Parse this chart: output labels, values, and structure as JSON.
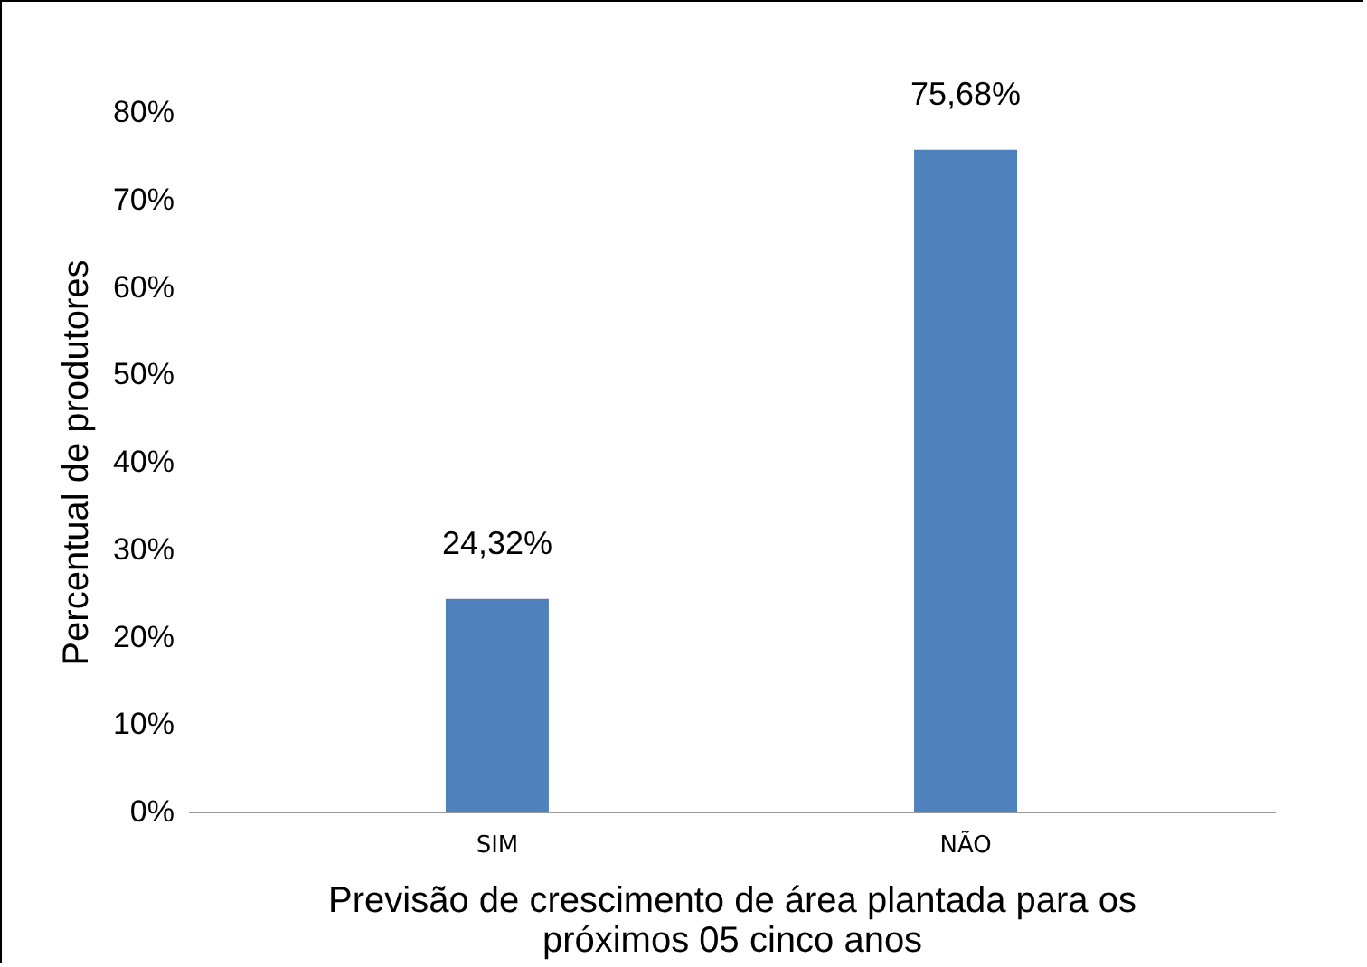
{
  "chart_data": {
    "type": "bar",
    "xlabel": "Previsão de crescimento de área plantada para os próximos 05 cinco anos",
    "ylabel": "Percentual de produtores",
    "categories": [
      "SIM",
      "NÃO"
    ],
    "values": [
      24.32,
      75.68
    ],
    "color": "#4f81bd",
    "value_labels": [
      "24,32%",
      "75,68%"
    ],
    "ylim": [
      0,
      80
    ],
    "yticks": [
      {
        "value": 0,
        "label": "0%"
      },
      {
        "value": 10,
        "label": "10%"
      },
      {
        "value": 20,
        "label": "20%"
      },
      {
        "value": 30,
        "label": "30%"
      },
      {
        "value": 40,
        "label": "40%"
      },
      {
        "value": 50,
        "label": "50%"
      },
      {
        "value": 60,
        "label": "60%"
      },
      {
        "value": 70,
        "label": "70%"
      },
      {
        "value": 80,
        "label": "80%"
      }
    ],
    "grid": false
  }
}
